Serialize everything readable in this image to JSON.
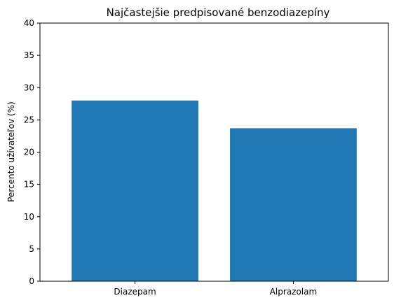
{
  "chart_data": {
    "type": "bar",
    "title": "Najčastejšie predpisované benzodiazepíny",
    "xlabel": "",
    "ylabel": "Percento užívateľov (%)",
    "categories": [
      "Diazepam",
      "Alprazolam"
    ],
    "values": [
      28.0,
      23.7
    ],
    "ylim": [
      0,
      40
    ],
    "yticks": [
      "0",
      "5",
      "10",
      "15",
      "20",
      "25",
      "30",
      "35",
      "40"
    ],
    "grid": false,
    "legend": "none",
    "bar_color": "#1f77b4"
  }
}
